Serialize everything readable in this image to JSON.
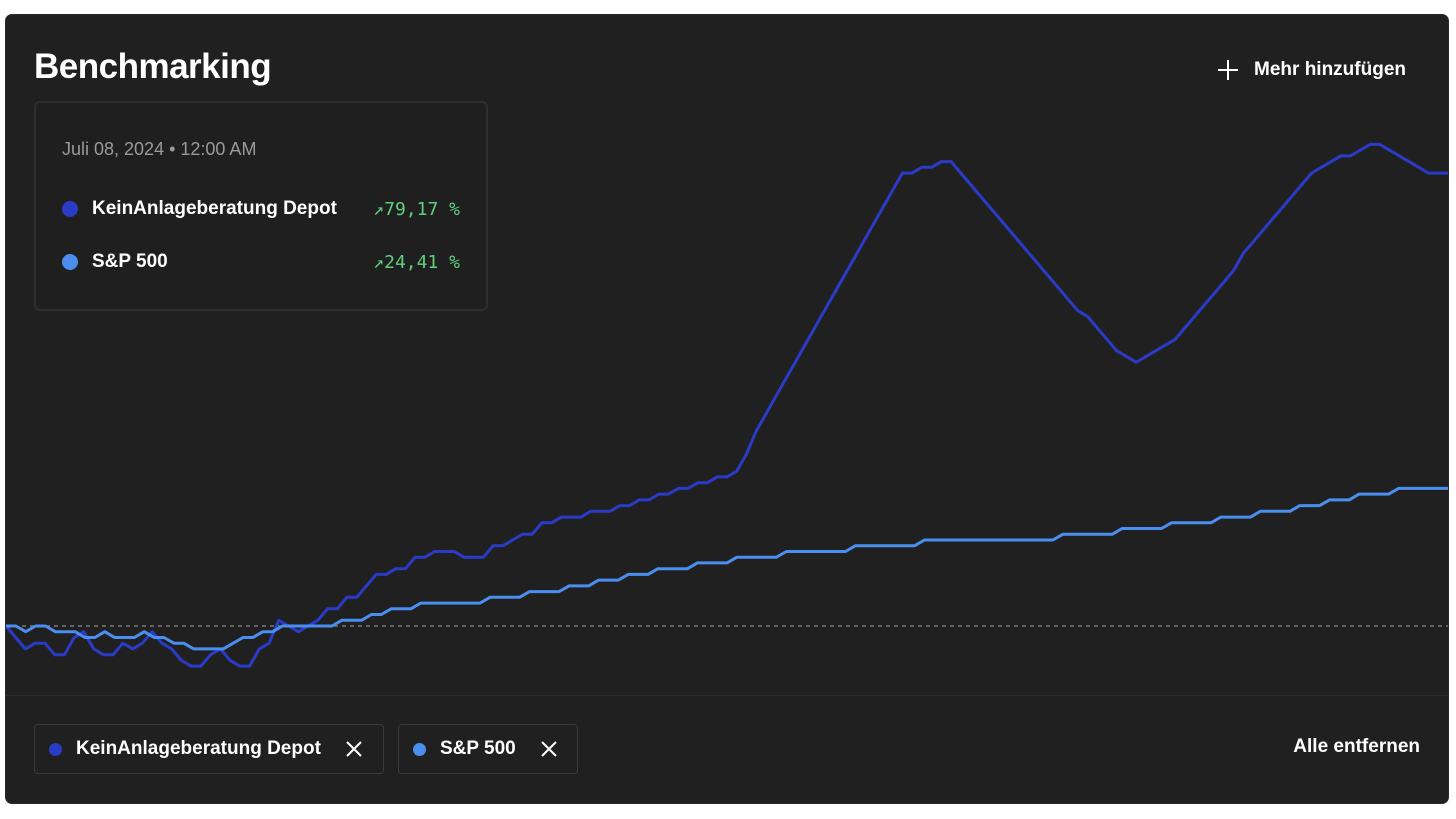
{
  "header": {
    "title": "Benchmarking",
    "add_label": "Mehr hinzufügen"
  },
  "tooltip": {
    "date": "Juli 08, 2024 • 12:00 AM",
    "rows": [
      {
        "name": "KeinAnlageberatung Depot",
        "value": "↗79,17 %",
        "color": "#2a3cc7"
      },
      {
        "name": "S&P 500",
        "value": "↗24,41 %",
        "color": "#4a8ef0"
      }
    ]
  },
  "chips": [
    {
      "label": "KeinAnlageberatung Depot",
      "color": "#2a3cc7"
    },
    {
      "label": "S&P 500",
      "color": "#4a8ef0"
    }
  ],
  "footer": {
    "remove_all_label": "Alle entfernen"
  },
  "chart_data": {
    "type": "line",
    "baseline": 0,
    "ylim": [
      -10,
      90
    ],
    "grid": false,
    "series": [
      {
        "name": "KeinAnlageberatung Depot",
        "color": "#2a3cc7",
        "values": [
          0,
          -2,
          -4,
          -3,
          -3,
          -5,
          -5,
          -2,
          -1,
          -4,
          -5,
          -5,
          -3,
          -4,
          -3,
          -1,
          -3,
          -4,
          -6,
          -7,
          -7,
          -5,
          -4,
          -6,
          -7,
          -7,
          -4,
          -3,
          1,
          0,
          -1,
          0,
          1,
          3,
          3,
          5,
          5,
          7,
          9,
          9,
          10,
          10,
          12,
          12,
          13,
          13,
          13,
          12,
          12,
          12,
          14,
          14,
          15,
          16,
          16,
          18,
          18,
          19,
          19,
          19,
          20,
          20,
          20,
          21,
          21,
          22,
          22,
          23,
          23,
          24,
          24,
          25,
          25,
          26,
          26,
          27,
          30,
          34,
          37,
          40,
          43,
          46,
          49,
          52,
          55,
          58,
          61,
          64,
          67,
          70,
          73,
          76,
          79,
          79,
          80,
          80,
          81,
          81,
          79,
          77,
          75,
          73,
          71,
          69,
          67,
          65,
          63,
          61,
          59,
          57,
          55,
          54,
          52,
          50,
          48,
          47,
          46,
          47,
          48,
          49,
          50,
          52,
          54,
          56,
          58,
          60,
          62,
          65,
          67,
          69,
          71,
          73,
          75,
          77,
          79,
          80,
          81,
          82,
          82,
          83,
          84,
          84,
          83,
          82,
          81,
          80,
          79,
          79,
          79
        ]
      },
      {
        "name": "S&P 500",
        "color": "#4a8ef0",
        "values": [
          0,
          0,
          -1,
          0,
          0,
          -1,
          -1,
          -1,
          -2,
          -2,
          -1,
          -2,
          -2,
          -2,
          -1,
          -2,
          -2,
          -3,
          -3,
          -4,
          -4,
          -4,
          -4,
          -3,
          -2,
          -2,
          -1,
          -1,
          0,
          0,
          0,
          0,
          0,
          0,
          1,
          1,
          1,
          2,
          2,
          3,
          3,
          3,
          4,
          4,
          4,
          4,
          4,
          4,
          4,
          5,
          5,
          5,
          5,
          6,
          6,
          6,
          6,
          7,
          7,
          7,
          8,
          8,
          8,
          9,
          9,
          9,
          10,
          10,
          10,
          10,
          11,
          11,
          11,
          11,
          12,
          12,
          12,
          12,
          12,
          13,
          13,
          13,
          13,
          13,
          13,
          13,
          14,
          14,
          14,
          14,
          14,
          14,
          14,
          15,
          15,
          15,
          15,
          15,
          15,
          15,
          15,
          15,
          15,
          15,
          15,
          15,
          15,
          16,
          16,
          16,
          16,
          16,
          16,
          17,
          17,
          17,
          17,
          17,
          18,
          18,
          18,
          18,
          18,
          19,
          19,
          19,
          19,
          20,
          20,
          20,
          20,
          21,
          21,
          21,
          22,
          22,
          22,
          23,
          23,
          23,
          23,
          24,
          24,
          24,
          24,
          24,
          24
        ]
      }
    ]
  }
}
